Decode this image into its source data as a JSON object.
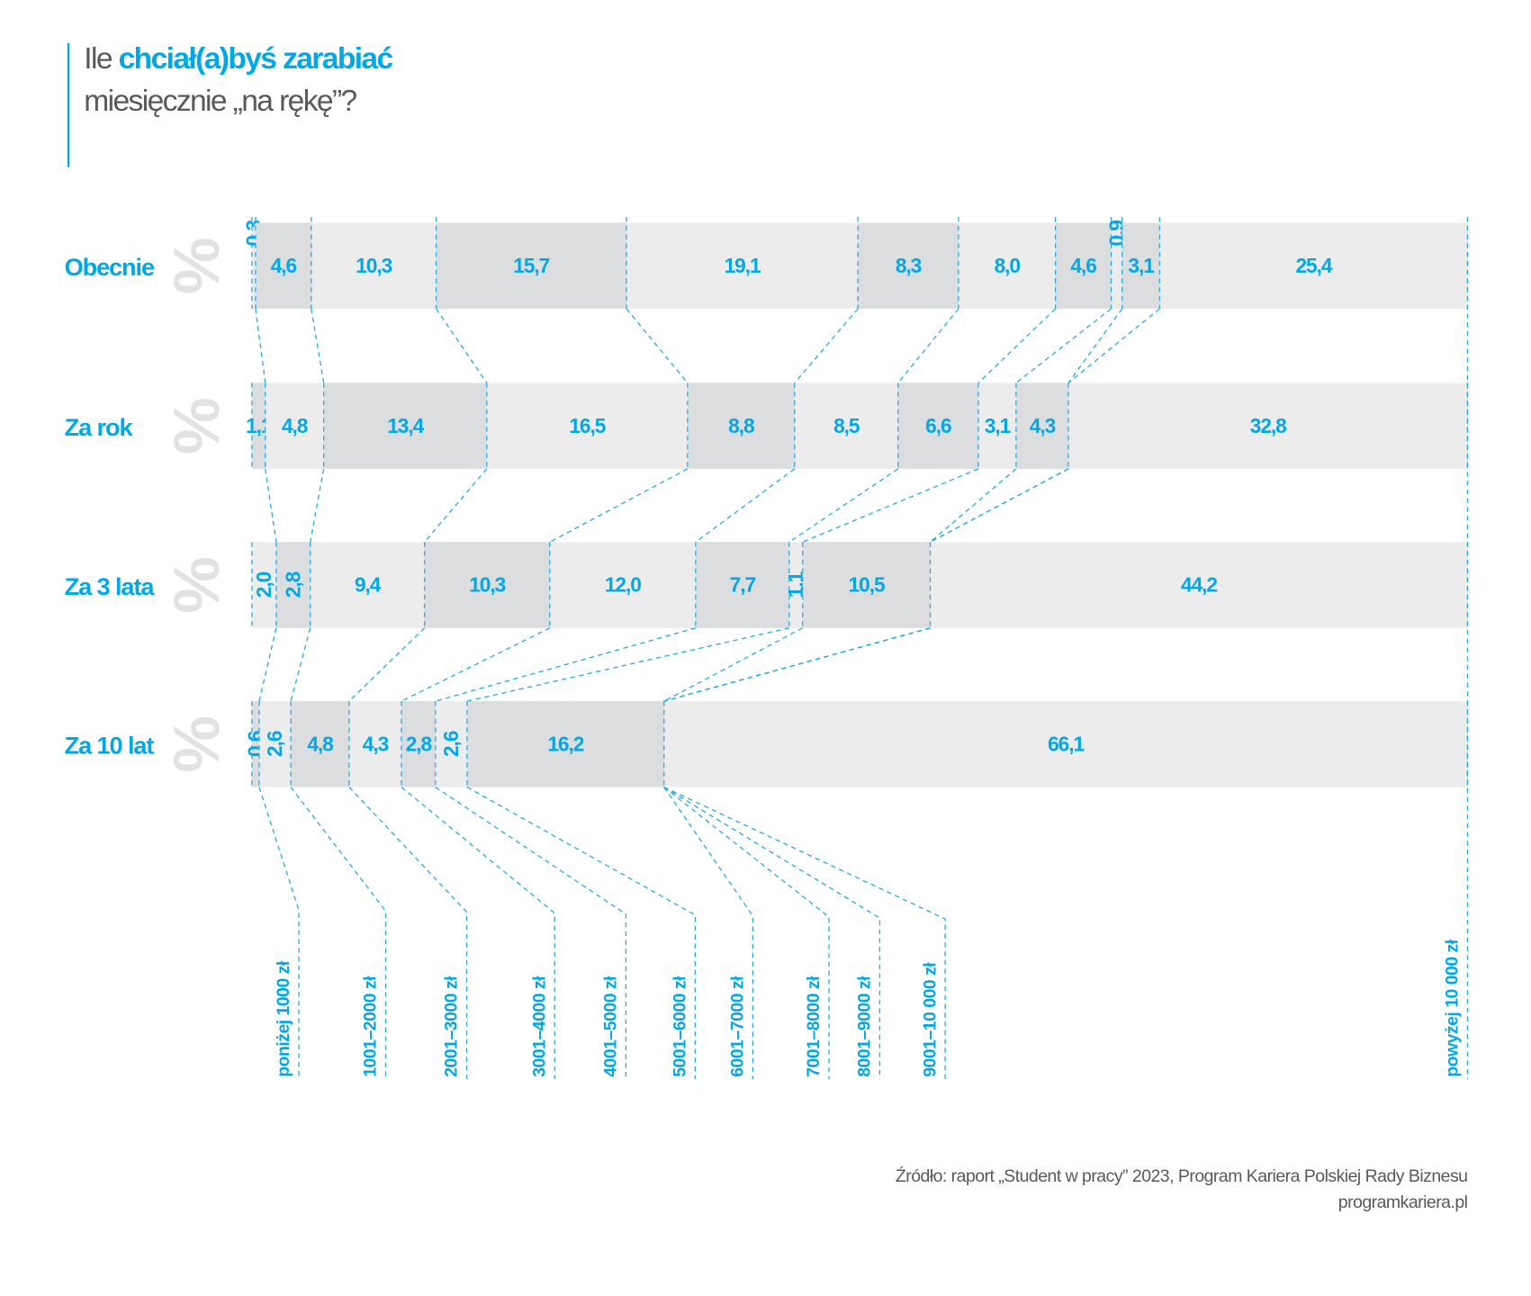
{
  "title": {
    "part1": "Ile ",
    "part2_highlight": "chciał(a)byś zarabiać",
    "line2": "miesięcznie „na rękę”?"
  },
  "colors": {
    "accent": "#00a8e8",
    "segment_dark": "#dcdddf",
    "segment_light": "#ececec",
    "text_gray": "#58595b",
    "percent_glyph": "#e2e2e2"
  },
  "chart_data": {
    "type": "bar",
    "orientation": "horizontal-stacked-100",
    "unit_symbol": "%",
    "categories": [
      "poniżej 1000 zł",
      "1001–2000 zł",
      "2001–3000 zł",
      "3001–4000 zł",
      "4001–5000 zł",
      "5001–6000 zł",
      "6001–7000 zł",
      "7001–8000 zł",
      "8001–9000 zł",
      "9001–10 000 zł",
      "powyżej 10 000 zł"
    ],
    "rows": [
      {
        "label": "Obecnie",
        "first_shade": "light",
        "values": [
          "0,3",
          "4,6",
          "10,3",
          "15,7",
          "19,1",
          "8,3",
          "8,0",
          "4,6",
          "0,9",
          "3,1",
          "25,4"
        ]
      },
      {
        "label": "Za rok",
        "first_shade": "dark",
        "values": [
          "1,1",
          "4,8",
          "13,4",
          "16,5",
          "8,8",
          "8,5",
          "6,6",
          "3,1",
          "4,3",
          "32,8"
        ]
      },
      {
        "label": "Za 3 lata",
        "first_shade": "light",
        "values": [
          "2,0",
          "2,8",
          "9,4",
          "10,3",
          "12,0",
          "7,7",
          "1,1",
          "10,5",
          "44,2"
        ]
      },
      {
        "label": "Za 10 lat",
        "first_shade": "dark",
        "values": [
          "0,6",
          "2,6",
          "4,8",
          "4,3",
          "2,8",
          "2,6",
          "16,2",
          "66,1"
        ]
      }
    ],
    "xlim": [
      0,
      100
    ],
    "grid": false,
    "legend": "bottom"
  },
  "footer": {
    "source": "Źródło: raport „Student w pracy” 2023, Program Kariera Polskiej Rady Biznesu",
    "site": "programkariera.pl"
  }
}
